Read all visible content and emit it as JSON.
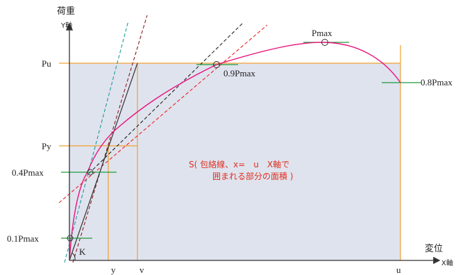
{
  "axes": {
    "y_title": "荷重",
    "y_axis_label": "Y軸",
    "x_title": "変位",
    "x_axis_label": "X軸"
  },
  "y_labels": {
    "pu": "Pu",
    "py": "Py",
    "p04": "0.4Pmax",
    "p01": "0.1Pmax"
  },
  "x_labels": {
    "y": "y",
    "v": "v",
    "u": "u"
  },
  "curve_labels": {
    "pmax": "Pmax",
    "p09": "0.9Pmax",
    "p08": "0.8Pmax",
    "k": "K"
  },
  "area_annotation": {
    "line1": "S( 包絡線、x=　u　X軸で",
    "line2": "囲まれる部分の面積 )"
  },
  "colors": {
    "curve": "#e8127c",
    "area_fill": "#dfe3ee",
    "orange": "#f0a030",
    "green": "#1a9a3a",
    "red_dashed": "#ee2222",
    "teal_dashed": "#1a9a9a",
    "dark_dashed": "#222222",
    "brown_dashed": "#8b1a1a",
    "annotation_text": "#e03020"
  }
}
